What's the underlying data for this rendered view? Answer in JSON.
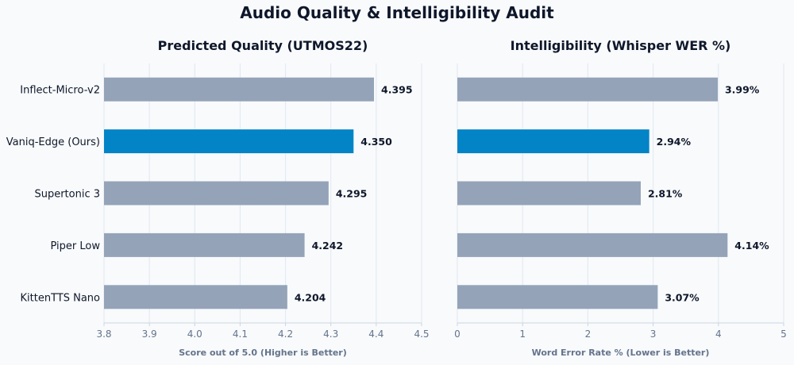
{
  "figure_title": "Audio Quality & Intelligibility Audit",
  "colors": {
    "highlight": "#0284c7",
    "bar": "#94a3b8",
    "grid": "#e2e8f0",
    "text": "#0f172a",
    "axis_text": "#64748b"
  },
  "chart_data": [
    {
      "type": "bar",
      "orientation": "horizontal",
      "title": "Predicted Quality (UTMOS22)",
      "xlabel": "Score out of 5.0 (Higher is Better)",
      "categories": [
        "Inflect-Micro-v2",
        "Vaniq-Edge (Ours)",
        "Supertonic 3",
        "Piper Low",
        "KittenTTS Nano"
      ],
      "values": [
        4.395,
        4.35,
        4.295,
        4.242,
        4.204
      ],
      "value_labels": [
        "4.395",
        "4.350",
        "4.295",
        "4.242",
        "4.204"
      ],
      "highlight": "Vaniq-Edge (Ours)",
      "xlim": [
        3.8,
        4.5
      ],
      "xticks": [
        3.8,
        3.9,
        4.0,
        4.1,
        4.2,
        4.3,
        4.4,
        4.5
      ],
      "xtick_labels": [
        "3.8",
        "3.9",
        "4.0",
        "4.1",
        "4.2",
        "4.3",
        "4.4",
        "4.5"
      ],
      "grid": true
    },
    {
      "type": "bar",
      "orientation": "horizontal",
      "title": "Intelligibility (Whisper WER %)",
      "xlabel": "Word Error Rate % (Lower is Better)",
      "categories": [
        "Inflect-Micro-v2",
        "Vaniq-Edge (Ours)",
        "Supertonic 3",
        "Piper Low",
        "KittenTTS Nano"
      ],
      "values": [
        3.99,
        2.94,
        2.81,
        4.14,
        3.07
      ],
      "value_labels": [
        "3.99%",
        "2.94%",
        "2.81%",
        "4.14%",
        "3.07%"
      ],
      "highlight": "Vaniq-Edge (Ours)",
      "xlim": [
        0,
        5
      ],
      "xticks": [
        0,
        1,
        2,
        3,
        4,
        5
      ],
      "xtick_labels": [
        "0",
        "1",
        "2",
        "3",
        "4",
        "5"
      ],
      "grid": true
    }
  ]
}
